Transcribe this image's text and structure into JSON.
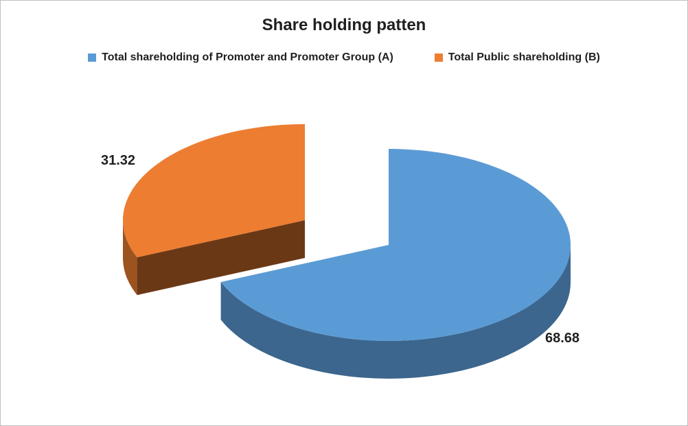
{
  "title": "Share holding patten",
  "chart_data": {
    "type": "pie",
    "style": "3d-exploded-pie",
    "title": "Share holding patten",
    "labels": [
      "Total shareholding of Promoter and Promoter Group (A)",
      "Total Public shareholding (B)"
    ],
    "values": [
      68.68,
      31.32
    ],
    "colors": [
      "#5B9BD5",
      "#ED7D31"
    ],
    "data_labels": [
      "68.68",
      "31.32"
    ],
    "legend_position": "top",
    "start_angle_deg": 0,
    "direction": "clockwise",
    "exploded_slice": "Total Public shareholding (B)",
    "background": "#FFFFFF"
  }
}
